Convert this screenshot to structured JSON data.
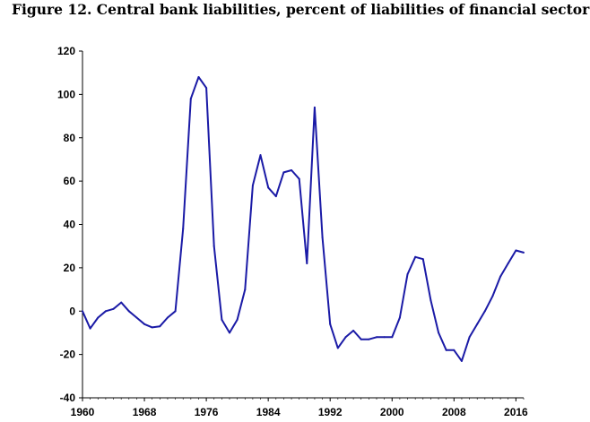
{
  "chart_data": {
    "type": "line",
    "title": "Figure 12. Central bank liabilities, percent of liabilities of financial sector",
    "xlabel": "",
    "ylabel": "",
    "xlim": [
      1960,
      2017
    ],
    "ylim": [
      -40,
      120
    ],
    "x_ticks": [
      "1960",
      "1968",
      "1976",
      "1984",
      "1992",
      "2000",
      "2008",
      "2016"
    ],
    "y_ticks": [
      "120",
      "100",
      "80",
      "60",
      "40",
      "20",
      "0",
      "-20",
      "-40"
    ],
    "grid": false,
    "legend": "none",
    "line_color": "#1a1aa6",
    "x": [
      1960,
      1961,
      1962,
      1963,
      1964,
      1965,
      1966,
      1967,
      1968,
      1969,
      1970,
      1971,
      1972,
      1973,
      1974,
      1975,
      1976,
      1977,
      1978,
      1979,
      1980,
      1981,
      1982,
      1983,
      1984,
      1985,
      1986,
      1987,
      1988,
      1989,
      1990,
      1991,
      1992,
      1993,
      1994,
      1995,
      1996,
      1997,
      1998,
      1999,
      2000,
      2001,
      2002,
      2003,
      2004,
      2005,
      2006,
      2007,
      2008,
      2009,
      2010,
      2011,
      2012,
      2013,
      2014,
      2015,
      2016,
      2017
    ],
    "y": [
      0,
      -8,
      -3,
      0,
      1,
      4,
      0,
      -3,
      -6,
      -7.5,
      -7,
      -3,
      0,
      38,
      98,
      108,
      103,
      30,
      -4,
      -10,
      -4,
      10,
      58,
      72,
      57,
      53,
      64,
      65,
      61,
      22,
      94,
      34,
      -6,
      -17,
      -12,
      -9,
      -13,
      -13,
      -12,
      -12,
      -12,
      -3,
      17,
      25,
      24,
      5,
      -10,
      -18,
      -18,
      -23,
      -12,
      -6,
      0,
      7,
      16,
      22,
      28,
      27
    ]
  }
}
